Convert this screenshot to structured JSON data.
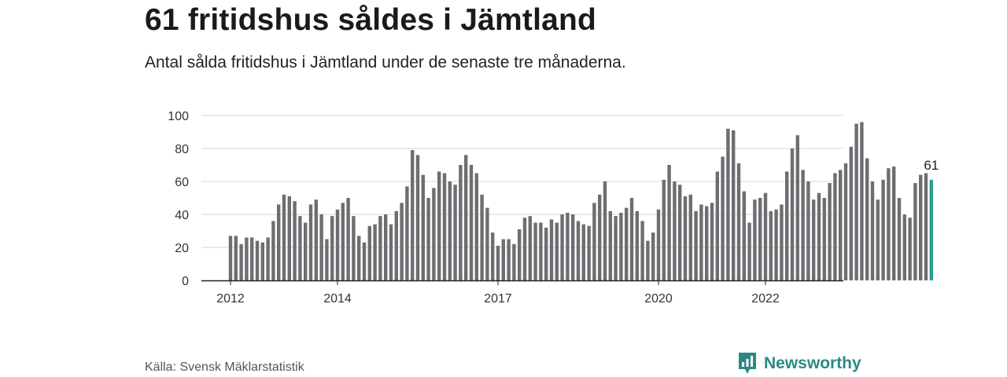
{
  "header": {
    "title": "61 fritidshus såldes i Jämtland",
    "subtitle": "Antal sålda fritidshus i Jämtland under de senaste tre månaderna."
  },
  "footer": {
    "source": "Källa: Svensk Mäklarstatistik",
    "brand": "Newsworthy",
    "brand_icon": "bar-chart-speech-bubble-icon",
    "brand_color": "#2a8a82"
  },
  "chart_data": {
    "type": "bar",
    "title": "61 fritidshus såldes i Jämtland",
    "subtitle": "Antal sålda fritidshus i Jämtland under de senaste tre månaderna.",
    "xlabel": "",
    "ylabel": "",
    "ylim": [
      0,
      100
    ],
    "yticks": [
      0,
      20,
      40,
      60,
      80,
      100
    ],
    "xtick_labels": [
      "2012",
      "2014",
      "2017",
      "2020",
      "2022"
    ],
    "xtick_bar_index": [
      0,
      20,
      50,
      80,
      100
    ],
    "grid": true,
    "bar_color": "#6e6e72",
    "highlight_color": "#2a9d8f",
    "highlight_label": "61",
    "values": [
      27,
      27,
      22,
      26,
      26,
      24,
      23,
      26,
      36,
      46,
      52,
      51,
      48,
      39,
      35,
      46,
      49,
      40,
      25,
      39,
      43,
      47,
      50,
      39,
      27,
      23,
      33,
      34,
      39,
      40,
      34,
      42,
      47,
      57,
      79,
      76,
      64,
      50,
      56,
      66,
      65,
      60,
      58,
      70,
      76,
      70,
      65,
      52,
      44,
      29,
      21,
      25,
      25,
      22,
      31,
      38,
      39,
      35,
      35,
      32,
      37,
      35,
      40,
      41,
      40,
      36,
      34,
      33,
      47,
      52,
      60,
      42,
      39,
      41,
      44,
      50,
      42,
      36,
      24,
      29,
      43,
      61,
      70,
      60,
      58,
      51,
      52,
      42,
      46,
      45,
      47,
      66,
      75,
      92,
      91,
      71,
      54,
      35,
      49,
      50,
      53,
      42,
      43,
      46,
      66,
      80,
      88,
      67,
      60,
      49,
      53,
      50,
      59,
      65,
      67,
      71,
      81,
      95,
      96,
      74,
      60,
      49,
      61,
      68,
      69,
      50,
      40,
      38,
      59,
      64,
      65,
      61
    ]
  }
}
